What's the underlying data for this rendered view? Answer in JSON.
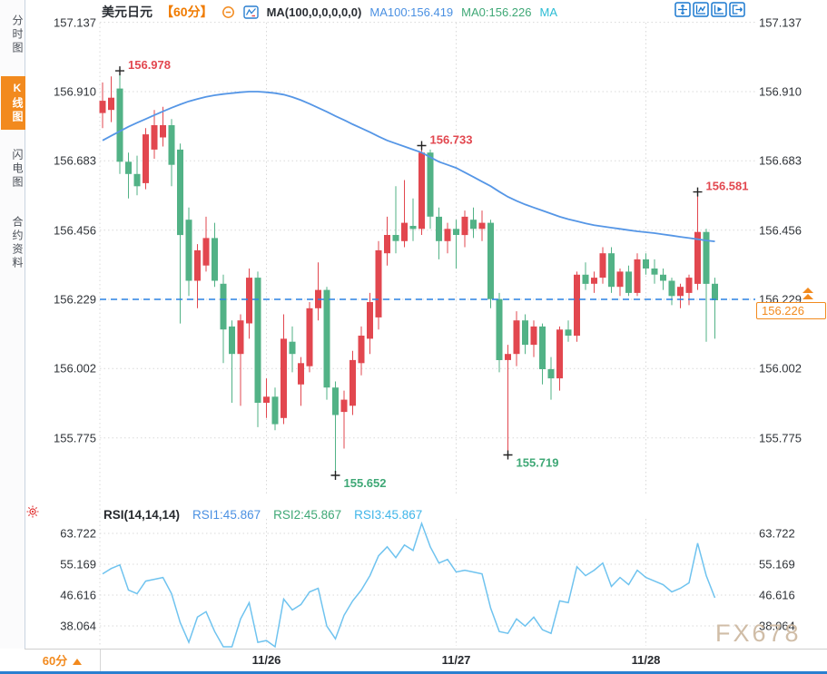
{
  "header": {
    "symbol": "美元日元",
    "interval_tag": "【60分】",
    "indicator_label": "MA(100,0,0,0,0,0)",
    "ma100_label": "MA100:156.419",
    "ma0_label": "MA0:156.226",
    "ma_label": "MA"
  },
  "sidebar": {
    "tabs": [
      {
        "label": "分时图",
        "active": false
      },
      {
        "label": "K线图",
        "active": true
      },
      {
        "label": "闪电图",
        "active": false
      },
      {
        "label": "合约资料",
        "active": false
      }
    ]
  },
  "toolbar": {
    "icons": [
      "move-crosshair",
      "axis-zoom-chart",
      "axis-play-chart",
      "exit-right"
    ]
  },
  "rsi_header": {
    "title": "RSI(14,14,14)",
    "rsi1": "RSI1:45.867",
    "rsi2": "RSI2:45.867",
    "rsi3": "RSI3:45.867"
  },
  "current_price": {
    "value": "156.226",
    "axis_ref": "156.229"
  },
  "footer": {
    "interval": "60分"
  },
  "watermark": "FX678",
  "colors": {
    "accent_orange": "#f28a1e",
    "icon_blue": "#1a78cf",
    "up_red": "#E2474F",
    "down_green": "#52B286"
  },
  "chart_data": {
    "type": "candlestick",
    "title": "美元日元 60分 K线图",
    "legend": [
      "MA100",
      "RSI1",
      "RSI2",
      "RSI3"
    ],
    "price_pane": {
      "grid_values": [
        157.137,
        156.91,
        156.683,
        156.456,
        156.229,
        156.002,
        155.775
      ],
      "up_color": "#E2474F",
      "down_color": "#52B286",
      "ma_color": "#5596E6",
      "ref_line_color": "#2A82E4",
      "last_price": 156.226,
      "ref_line": 156.229,
      "ma100_last": 156.419,
      "candles_ohlc": [
        [
          156.84,
          156.94,
          156.79,
          156.88
        ],
        [
          156.85,
          156.96,
          156.81,
          156.89
        ],
        [
          156.92,
          156.978,
          156.64,
          156.68
        ],
        [
          156.68,
          156.71,
          156.56,
          156.64
        ],
        [
          156.64,
          156.7,
          156.57,
          156.6
        ],
        [
          156.61,
          156.79,
          156.59,
          156.77
        ],
        [
          156.72,
          156.85,
          156.69,
          156.8
        ],
        [
          156.76,
          156.86,
          156.73,
          156.8
        ],
        [
          156.8,
          156.82,
          156.6,
          156.67
        ],
        [
          156.72,
          156.74,
          156.15,
          156.44
        ],
        [
          156.49,
          156.53,
          156.24,
          156.29
        ],
        [
          156.29,
          156.41,
          156.2,
          156.39
        ],
        [
          156.34,
          156.5,
          156.32,
          156.43
        ],
        [
          156.43,
          156.48,
          156.27,
          156.29
        ],
        [
          156.28,
          156.31,
          156.02,
          156.13
        ],
        [
          156.14,
          156.16,
          155.89,
          156.05
        ],
        [
          156.05,
          156.18,
          155.88,
          156.16
        ],
        [
          156.15,
          156.33,
          156.1,
          156.3
        ],
        [
          156.3,
          156.32,
          155.81,
          155.89
        ],
        [
          155.89,
          155.97,
          155.84,
          155.91
        ],
        [
          155.91,
          155.94,
          155.8,
          155.82
        ],
        [
          155.84,
          156.18,
          155.82,
          156.1
        ],
        [
          156.09,
          156.14,
          155.99,
          156.05
        ],
        [
          155.95,
          156.04,
          155.88,
          156.02
        ],
        [
          156.01,
          156.22,
          155.99,
          156.2
        ],
        [
          156.2,
          156.35,
          156.16,
          156.26
        ],
        [
          156.26,
          156.27,
          155.9,
          155.94
        ],
        [
          155.94,
          155.96,
          155.652,
          155.85
        ],
        [
          155.86,
          155.93,
          155.74,
          155.9
        ],
        [
          155.88,
          156.06,
          155.85,
          156.03
        ],
        [
          156.02,
          156.14,
          155.98,
          156.11
        ],
        [
          156.1,
          156.25,
          156.05,
          156.22
        ],
        [
          156.17,
          156.42,
          156.13,
          156.39
        ],
        [
          156.38,
          156.5,
          156.34,
          156.44
        ],
        [
          156.44,
          156.6,
          156.38,
          156.42
        ],
        [
          156.42,
          156.62,
          156.4,
          156.48
        ],
        [
          156.47,
          156.56,
          156.42,
          156.46
        ],
        [
          156.46,
          156.733,
          156.44,
          156.71
        ],
        [
          156.71,
          156.72,
          156.46,
          156.5
        ],
        [
          156.5,
          156.53,
          156.36,
          156.42
        ],
        [
          156.42,
          156.48,
          156.38,
          156.46
        ],
        [
          156.46,
          156.49,
          156.33,
          156.44
        ],
        [
          156.44,
          156.52,
          156.4,
          156.5
        ],
        [
          156.49,
          156.53,
          156.43,
          156.46
        ],
        [
          156.46,
          156.52,
          156.42,
          156.48
        ],
        [
          156.48,
          156.49,
          156.2,
          156.23
        ],
        [
          156.23,
          156.25,
          155.99,
          156.03
        ],
        [
          156.03,
          156.08,
          155.719,
          156.05
        ],
        [
          156.05,
          156.19,
          156.01,
          156.16
        ],
        [
          156.16,
          156.18,
          156.05,
          156.08
        ],
        [
          156.08,
          156.16,
          156.04,
          156.14
        ],
        [
          156.14,
          156.15,
          155.95,
          156.0
        ],
        [
          156.0,
          156.04,
          155.9,
          155.97
        ],
        [
          155.97,
          156.14,
          155.93,
          156.13
        ],
        [
          156.13,
          156.16,
          156.09,
          156.11
        ],
        [
          156.11,
          156.32,
          156.09,
          156.31
        ],
        [
          156.31,
          156.35,
          156.26,
          156.28
        ],
        [
          156.28,
          156.32,
          156.25,
          156.3
        ],
        [
          156.3,
          156.4,
          156.28,
          156.38
        ],
        [
          156.38,
          156.4,
          156.25,
          156.27
        ],
        [
          156.27,
          156.33,
          156.24,
          156.32
        ],
        [
          156.32,
          156.34,
          156.24,
          156.25
        ],
        [
          156.25,
          156.38,
          156.24,
          156.36
        ],
        [
          156.36,
          156.38,
          156.31,
          156.33
        ],
        [
          156.33,
          156.36,
          156.28,
          156.31
        ],
        [
          156.31,
          156.33,
          156.26,
          156.29
        ],
        [
          156.29,
          156.3,
          156.21,
          156.24
        ],
        [
          156.24,
          156.28,
          156.2,
          156.27
        ],
        [
          156.25,
          156.31,
          156.21,
          156.3
        ],
        [
          156.28,
          156.581,
          156.26,
          156.45
        ],
        [
          156.45,
          156.46,
          156.09,
          156.28
        ],
        [
          156.28,
          156.3,
          156.1,
          156.226
        ]
      ],
      "ma100": [
        156.75,
        156.765,
        156.78,
        156.795,
        156.808,
        156.82,
        156.833,
        156.845,
        156.857,
        156.868,
        156.878,
        156.886,
        156.893,
        156.898,
        156.902,
        156.905,
        156.908,
        156.91,
        156.91,
        156.908,
        156.905,
        156.9,
        156.892,
        156.882,
        156.87,
        156.857,
        156.844,
        156.83,
        156.817,
        156.803,
        156.79,
        156.777,
        156.763,
        156.75,
        156.74,
        156.73,
        156.72,
        156.71,
        156.695,
        156.68,
        156.67,
        156.66,
        156.645,
        156.63,
        156.615,
        156.6,
        156.582,
        156.565,
        156.552,
        156.54,
        156.53,
        156.52,
        156.51,
        156.5,
        156.492,
        156.485,
        156.478,
        156.472,
        156.468,
        156.464,
        156.46,
        156.456,
        156.452,
        156.449,
        156.446,
        156.442,
        156.438,
        156.434,
        156.43,
        156.426,
        156.422,
        156.419
      ]
    },
    "rsi_pane": {
      "grid_values": [
        63.722,
        55.169,
        46.616,
        38.064
      ],
      "line_color": "#6FC3EF",
      "rsi1_last": 45.867,
      "values": [
        52.5,
        54.0,
        55.0,
        48.0,
        47.0,
        50.5,
        51.0,
        51.5,
        47.0,
        39.0,
        33.5,
        40.5,
        42.0,
        36.5,
        31.5,
        29.0,
        40.0,
        44.5,
        33.5,
        34.0,
        31.0,
        45.5,
        42.5,
        44.0,
        47.5,
        48.5,
        38.0,
        34.5,
        41.0,
        45.0,
        48.0,
        52.0,
        57.5,
        60.0,
        57.0,
        60.5,
        59.0,
        66.5,
        60.0,
        55.5,
        56.5,
        53.0,
        53.5,
        53.0,
        52.5,
        43.0,
        36.5,
        36.0,
        40.0,
        38.0,
        40.5,
        37.0,
        36.0,
        45.0,
        44.5,
        54.5,
        52.0,
        53.5,
        55.5,
        49.0,
        51.5,
        49.5,
        53.5,
        51.5,
        50.5,
        49.5,
        47.5,
        48.5,
        50.0,
        61.0,
        52.0,
        45.867
      ]
    },
    "x_ticks": [
      {
        "label": "11/26",
        "index": 19
      },
      {
        "label": "11/27",
        "index": 41
      },
      {
        "label": "11/28",
        "index": 63
      }
    ],
    "annotations": [
      {
        "text": "156.978",
        "index": 2,
        "price": 156.978,
        "kind": "high"
      },
      {
        "text": "156.733",
        "index": 37,
        "price": 156.733,
        "kind": "high"
      },
      {
        "text": "156.581",
        "index": 69,
        "price": 156.581,
        "kind": "high"
      },
      {
        "text": "155.652",
        "index": 27,
        "price": 155.652,
        "kind": "low"
      },
      {
        "text": "155.719",
        "index": 47,
        "price": 155.719,
        "kind": "low"
      }
    ],
    "annotation_colors": {
      "high": "#E2474F",
      "low": "#3FA876"
    }
  }
}
